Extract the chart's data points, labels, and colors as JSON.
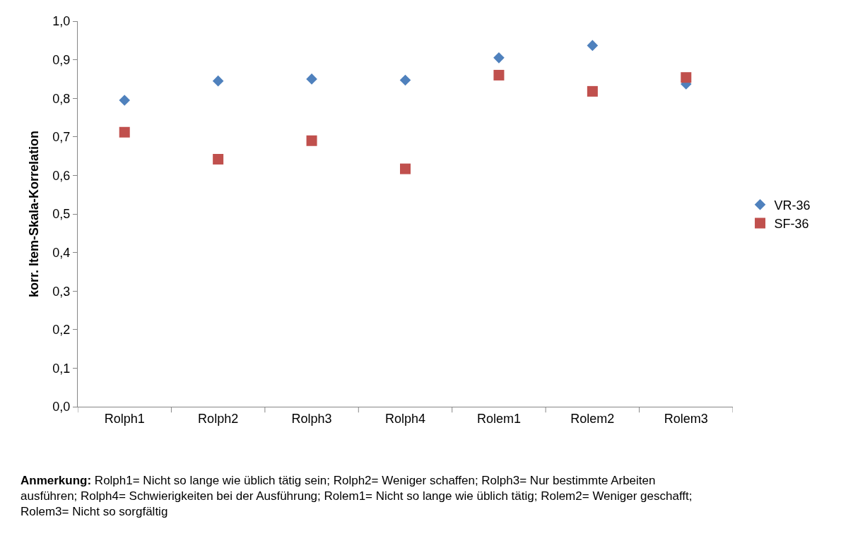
{
  "chart_data": {
    "type": "scatter",
    "ylabel": "korr. Item-Skala-Korrelation",
    "categories": [
      "Rolph1",
      "Rolph2",
      "Rolph3",
      "Rolph4",
      "Rolem1",
      "Rolem2",
      "Rolem3"
    ],
    "series": [
      {
        "name": "VR-36",
        "color": "#4f81bd",
        "marker": "diamond",
        "values": [
          0.795,
          0.845,
          0.85,
          0.847,
          0.905,
          0.937,
          0.837
        ]
      },
      {
        "name": "SF-36",
        "color": "#c0504d",
        "marker": "square",
        "values": [
          0.712,
          0.642,
          0.69,
          0.617,
          0.86,
          0.818,
          0.854
        ]
      }
    ],
    "ylim": [
      0,
      1
    ],
    "yticks": [
      {
        "value": 0,
        "label": "0,0"
      },
      {
        "value": 0.1,
        "label": "0,1"
      },
      {
        "value": 0.2,
        "label": "0,2"
      },
      {
        "value": 0.3,
        "label": "0,3"
      },
      {
        "value": 0.4,
        "label": "0,4"
      },
      {
        "value": 0.5,
        "label": "0,5"
      },
      {
        "value": 0.6,
        "label": "0,6"
      },
      {
        "value": 0.7,
        "label": "0,7"
      },
      {
        "value": 0.8,
        "label": "0,8"
      },
      {
        "value": 0.9,
        "label": "0,9"
      },
      {
        "value": 1,
        "label": "1,0"
      }
    ],
    "legend": "right",
    "annotations": [
      "Anmerkung: Rolph1= Nicht so lange wie üblich tätig sein; Rolph2= Weniger schaffen; Rolph3= Nur bestimmte Arbeiten ausführen; Rolph4= Schwierigkeiten bei der Ausführung; Rolem1= Nicht so lange wie üblich tätig; Rolem2= Weniger geschafft; Rolem3= Nicht so sorgfältig"
    ]
  }
}
